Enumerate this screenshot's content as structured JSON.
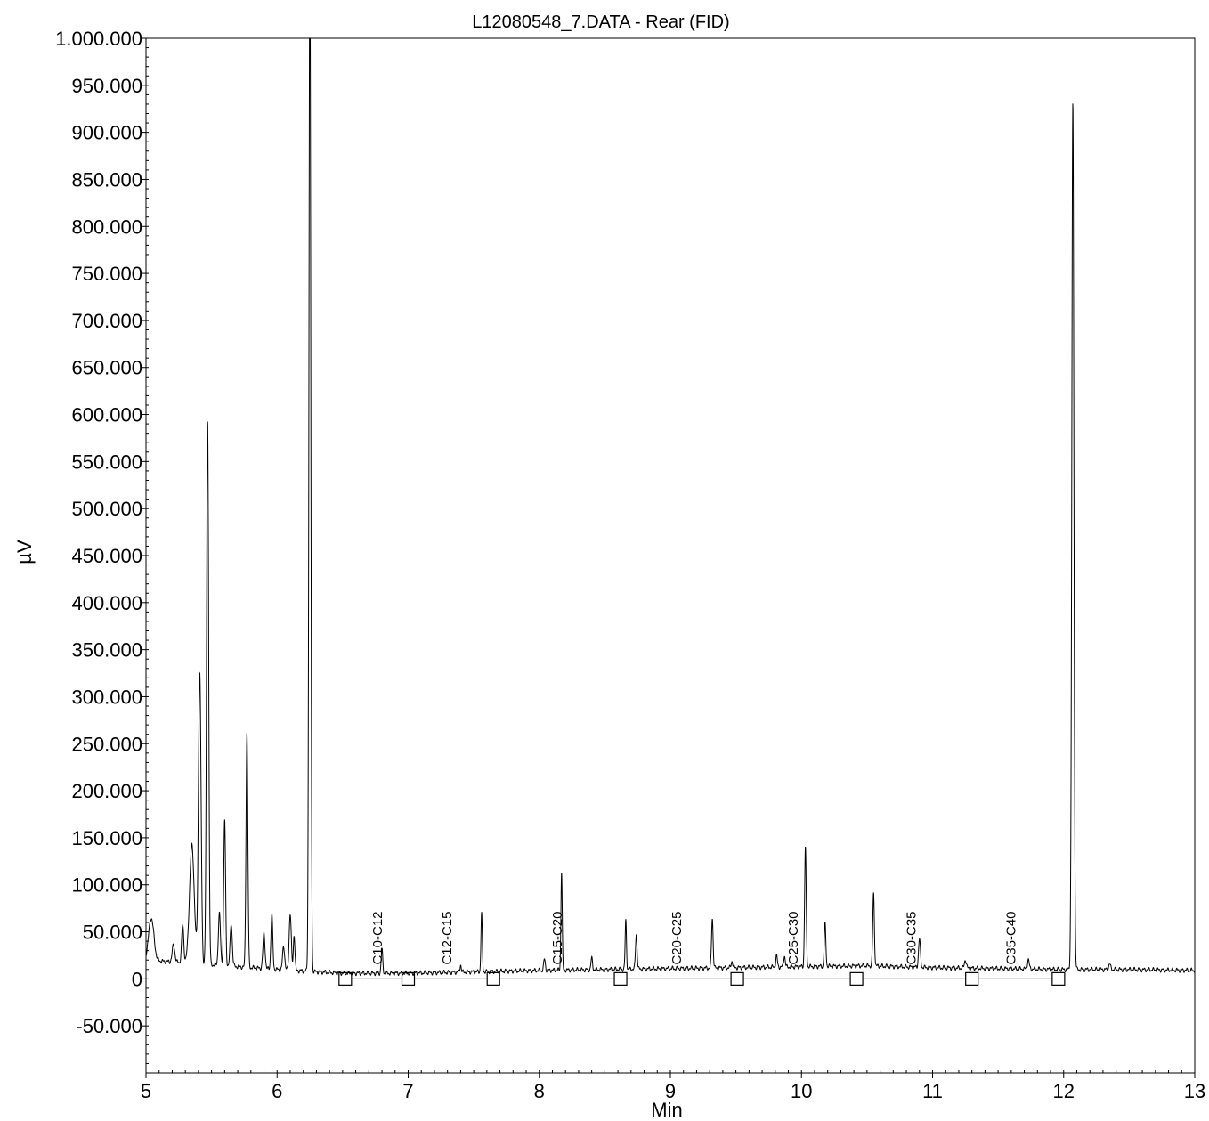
{
  "chart_data": {
    "type": "line",
    "title": "L12080548_7.DATA - Rear (FID)",
    "xlabel": "Min",
    "ylabel": "µV",
    "xlim": [
      5,
      13
    ],
    "ylim": [
      -100000,
      1000000
    ],
    "x_ticks": [
      5,
      6,
      7,
      8,
      9,
      10,
      11,
      12,
      13
    ],
    "x_tick_labels": [
      "5",
      "6",
      "7",
      "8",
      "9",
      "10",
      "11",
      "12",
      "13"
    ],
    "y_ticks": [
      1000000,
      950000,
      900000,
      850000,
      800000,
      750000,
      700000,
      650000,
      600000,
      550000,
      500000,
      450000,
      400000,
      350000,
      300000,
      250000,
      200000,
      150000,
      100000,
      50000,
      0,
      -50000
    ],
    "y_tick_labels": [
      "1.000.000",
      "950.000",
      "900.000",
      "850.000",
      "800.000",
      "750.000",
      "700.000",
      "650.000",
      "600.000",
      "550.000",
      "500.000",
      "450.000",
      "400.000",
      "350.000",
      "300.000",
      "250.000",
      "200.000",
      "150.000",
      "100.000",
      "50.000",
      "0",
      "-50.000"
    ],
    "grid": false,
    "baseline_value": 0,
    "series": [
      {
        "color": "#000000",
        "baseline": [
          [
            5.0,
            20000
          ],
          [
            5.5,
            15000
          ],
          [
            6.0,
            10000
          ],
          [
            6.5,
            6000
          ],
          [
            7.0,
            6000
          ],
          [
            8.0,
            9000
          ],
          [
            9.0,
            11000
          ],
          [
            10.0,
            13000
          ],
          [
            10.5,
            14000
          ],
          [
            11.0,
            12000
          ],
          [
            12.0,
            10000
          ],
          [
            12.5,
            10000
          ],
          [
            13.0,
            9000
          ]
        ],
        "peaks": [
          {
            "rt": 5.04,
            "height": 45000,
            "width": 0.02
          },
          {
            "rt": 5.21,
            "height": 18000,
            "width": 0.01
          },
          {
            "rt": 5.28,
            "height": 40000,
            "width": 0.008
          },
          {
            "rt": 5.35,
            "height": 125000,
            "width": 0.018
          },
          {
            "rt": 5.41,
            "height": 310000,
            "width": 0.01
          },
          {
            "rt": 5.47,
            "height": 580000,
            "width": 0.008
          },
          {
            "rt": 5.56,
            "height": 55000,
            "width": 0.008
          },
          {
            "rt": 5.6,
            "height": 155000,
            "width": 0.007
          },
          {
            "rt": 5.65,
            "height": 45000,
            "width": 0.008
          },
          {
            "rt": 5.77,
            "height": 250000,
            "width": 0.007
          },
          {
            "rt": 5.9,
            "height": 37000,
            "width": 0.008
          },
          {
            "rt": 5.96,
            "height": 58000,
            "width": 0.007
          },
          {
            "rt": 6.05,
            "height": 25000,
            "width": 0.008
          },
          {
            "rt": 6.1,
            "height": 60000,
            "width": 0.008
          },
          {
            "rt": 6.13,
            "height": 38000,
            "width": 0.006
          },
          {
            "rt": 6.25,
            "height": 1100000,
            "width": 0.007
          },
          {
            "rt": 6.8,
            "height": 25000,
            "width": 0.006
          },
          {
            "rt": 7.4,
            "height": 8000,
            "width": 0.005
          },
          {
            "rt": 7.56,
            "height": 62000,
            "width": 0.005
          },
          {
            "rt": 8.04,
            "height": 12000,
            "width": 0.006
          },
          {
            "rt": 8.17,
            "height": 105000,
            "width": 0.005
          },
          {
            "rt": 8.4,
            "height": 12000,
            "width": 0.006
          },
          {
            "rt": 8.66,
            "height": 52000,
            "width": 0.005
          },
          {
            "rt": 8.74,
            "height": 37000,
            "width": 0.006
          },
          {
            "rt": 9.32,
            "height": 53000,
            "width": 0.006
          },
          {
            "rt": 9.47,
            "height": 7000,
            "width": 0.006
          },
          {
            "rt": 9.81,
            "height": 12000,
            "width": 0.006
          },
          {
            "rt": 9.87,
            "height": 12000,
            "width": 0.006
          },
          {
            "rt": 10.03,
            "height": 127000,
            "width": 0.006
          },
          {
            "rt": 10.18,
            "height": 45000,
            "width": 0.006
          },
          {
            "rt": 10.55,
            "height": 77000,
            "width": 0.006
          },
          {
            "rt": 10.9,
            "height": 30000,
            "width": 0.007
          },
          {
            "rt": 11.25,
            "height": 9000,
            "width": 0.007
          },
          {
            "rt": 11.73,
            "height": 10000,
            "width": 0.007
          },
          {
            "rt": 12.07,
            "height": 920000,
            "width": 0.008
          },
          {
            "rt": 12.35,
            "height": 6000,
            "width": 0.007
          }
        ]
      }
    ],
    "annotations": [
      {
        "text": "C10-C12",
        "x": 6.8,
        "y": 15000
      },
      {
        "text": "C12-C15",
        "x": 7.33,
        "y": 15000
      },
      {
        "text": "C15-C20",
        "x": 8.17,
        "y": 15000
      },
      {
        "text": "C20-C25",
        "x": 9.08,
        "y": 15000
      },
      {
        "text": "C25-C30",
        "x": 9.97,
        "y": 15000
      },
      {
        "text": "C30-C35",
        "x": 10.87,
        "y": 15000
      },
      {
        "text": "C35-C40",
        "x": 11.63,
        "y": 15000
      }
    ],
    "integration_markers": [
      6.52,
      7.0,
      7.65,
      8.62,
      9.51,
      10.42,
      11.3,
      11.96
    ]
  }
}
